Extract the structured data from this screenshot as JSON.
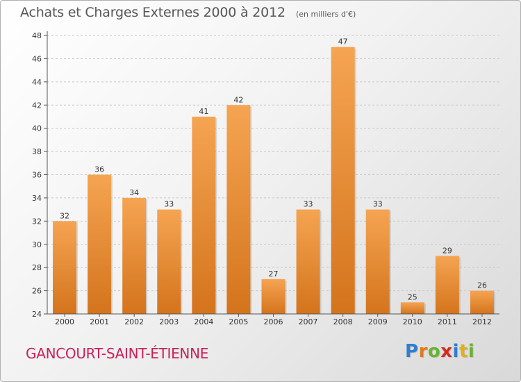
{
  "title": "Achats et Charges Externes 2000 à 2012",
  "subtitle": "(en milliers d'€)",
  "commune": "GANCOURT-SAINT-ÉTIENNE",
  "logo": {
    "letters": [
      "P",
      "r",
      "o",
      "x",
      "i",
      "t",
      "i"
    ],
    "colors": [
      "#2f7fcf",
      "#e07a1a",
      "#6ab22e",
      "#d6281e",
      "#2f7fcf",
      "#e0b01a",
      "#6ab22e"
    ]
  },
  "colors": {
    "bar_top": "#f5a452",
    "bar_bottom": "#d4741c",
    "commune": "#c8205a"
  },
  "chart_data": {
    "type": "bar",
    "categories": [
      "2000",
      "2001",
      "2002",
      "2003",
      "2004",
      "2005",
      "2006",
      "2007",
      "2008",
      "2009",
      "2010",
      "2011",
      "2012"
    ],
    "values": [
      32,
      36,
      34,
      33,
      41,
      42,
      27,
      33,
      47,
      33,
      25,
      29,
      26
    ],
    "ylim": [
      24,
      48
    ],
    "yticks": [
      24,
      26,
      28,
      30,
      32,
      34,
      36,
      38,
      40,
      42,
      44,
      46,
      48
    ],
    "grid": "horizontal dashed",
    "title": "Achats et Charges Externes 2000 à 2012",
    "subtitle": "(en milliers d'€)",
    "xlabel": "",
    "ylabel": ""
  }
}
